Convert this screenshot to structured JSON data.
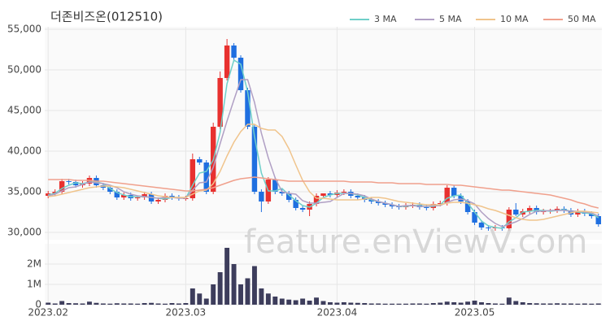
{
  "chart_data": {
    "type": "candlestick",
    "title": "더존비즈온(012510)",
    "watermark": "feature.enViewV.com",
    "categories": [
      "2023.02",
      null,
      null,
      null,
      null,
      null,
      null,
      null,
      null,
      null,
      null,
      null,
      null,
      null,
      null,
      null,
      null,
      null,
      null,
      null,
      "2023.03",
      null,
      null,
      null,
      null,
      null,
      null,
      null,
      null,
      null,
      null,
      null,
      null,
      null,
      null,
      null,
      null,
      null,
      null,
      null,
      null,
      null,
      "2023.04",
      null,
      null,
      null,
      null,
      null,
      null,
      null,
      null,
      null,
      null,
      null,
      null,
      null,
      null,
      null,
      null,
      null,
      null,
      null,
      "2023.05",
      null,
      null,
      null,
      null,
      null,
      null,
      null,
      null,
      null,
      null,
      null,
      null,
      null,
      null,
      null,
      null,
      null,
      null
    ],
    "open": [
      34500,
      34800,
      35000,
      36300,
      36200,
      35800,
      36000,
      36700,
      35800,
      35500,
      35000,
      34300,
      34600,
      34200,
      34300,
      34700,
      33800,
      34000,
      34500,
      34300,
      34200,
      34200,
      39000,
      38600,
      35000,
      43000,
      49000,
      53000,
      51500,
      47500,
      43000,
      35000,
      33800,
      36500,
      35000,
      34800,
      34000,
      33000,
      32800,
      33500,
      34500,
      34800,
      34600,
      34900,
      35000,
      34500,
      34300,
      34000,
      33800,
      33600,
      33400,
      33200,
      33100,
      33300,
      33400,
      33100,
      33000,
      33500,
      33600,
      35500,
      34500,
      33800,
      32500,
      31200,
      30600,
      30500,
      30600,
      30500,
      32800,
      32200,
      32600,
      33000,
      32500,
      32600,
      32700,
      32900,
      32700,
      32200,
      32600,
      32300,
      32000
    ],
    "high": [
      35100,
      35300,
      36600,
      36600,
      36500,
      36300,
      37000,
      37000,
      36100,
      35800,
      35300,
      34900,
      34900,
      34500,
      35000,
      35000,
      34300,
      34800,
      34800,
      34600,
      34500,
      39700,
      39300,
      38900,
      43500,
      49800,
      53800,
      53300,
      51800,
      47800,
      43300,
      35300,
      36800,
      36800,
      35300,
      35100,
      34300,
      33300,
      33800,
      34800,
      34800,
      35100,
      35200,
      35300,
      35300,
      34800,
      34600,
      34300,
      34100,
      33900,
      33700,
      33500,
      33600,
      33700,
      33700,
      33400,
      33800,
      33900,
      35800,
      35800,
      34800,
      34100,
      32800,
      31500,
      30900,
      30900,
      30900,
      33100,
      33600,
      32900,
      33300,
      33300,
      32900,
      32900,
      33200,
      33200,
      33000,
      32900,
      32900,
      32600,
      32300
    ],
    "low": [
      34200,
      34500,
      34700,
      35900,
      35500,
      35500,
      35700,
      35500,
      35200,
      34700,
      34000,
      34000,
      33900,
      33900,
      34000,
      33500,
      33500,
      33700,
      34000,
      33900,
      33900,
      33900,
      38300,
      34700,
      34700,
      42700,
      48700,
      51200,
      47200,
      42700,
      34700,
      32500,
      33500,
      34700,
      34500,
      33700,
      32700,
      32500,
      32000,
      33200,
      34200,
      34300,
      34300,
      34600,
      34200,
      34000,
      33700,
      33500,
      33300,
      33100,
      32900,
      32800,
      32800,
      33000,
      32800,
      32700,
      32700,
      33200,
      33300,
      34200,
      33500,
      32200,
      30900,
      30300,
      30200,
      30200,
      30200,
      30200,
      32000,
      31900,
      32300,
      32200,
      32200,
      32300,
      32400,
      32400,
      31900,
      31900,
      32000,
      31700,
      30700
    ],
    "close": [
      34800,
      35000,
      36300,
      36200,
      35800,
      36000,
      36700,
      35800,
      35500,
      35000,
      34300,
      34600,
      34200,
      34300,
      34700,
      33800,
      34000,
      34500,
      34300,
      34200,
      34200,
      39000,
      38600,
      35000,
      43000,
      49000,
      53000,
      51500,
      47500,
      43000,
      35000,
      33800,
      36500,
      35000,
      34800,
      34000,
      33000,
      32800,
      33500,
      34500,
      34800,
      34600,
      34900,
      35000,
      34500,
      34300,
      34000,
      33800,
      33600,
      33400,
      33200,
      33100,
      33300,
      33400,
      33100,
      33000,
      33500,
      33600,
      35500,
      34500,
      33800,
      32500,
      31200,
      30600,
      30500,
      30600,
      30500,
      32800,
      32200,
      32600,
      33000,
      32500,
      32600,
      32700,
      32900,
      32700,
      32200,
      32600,
      32300,
      32000,
      31000
    ],
    "up_color": "#e8312f",
    "down_color": "#1f6fe0",
    "ylim": [
      29100,
      55300
    ],
    "yticks": [
      {
        "value": 30000,
        "label": "30,000"
      },
      {
        "value": 35000,
        "label": "35,000"
      },
      {
        "value": 40000,
        "label": "40,000"
      },
      {
        "value": 45000,
        "label": "45,000"
      },
      {
        "value": 50000,
        "label": "50,000"
      },
      {
        "value": 55000,
        "label": "55,000"
      }
    ],
    "grid": true,
    "series": [
      {
        "name": "3 MA",
        "color": "#6fcfc9",
        "values": [
          34600,
          34800,
          35400,
          35800,
          36100,
          36000,
          36200,
          36200,
          36000,
          35400,
          34900,
          34600,
          34400,
          34400,
          34400,
          34300,
          34200,
          34100,
          34300,
          34300,
          34200,
          35800,
          37300,
          37500,
          38900,
          42300,
          48300,
          51200,
          50700,
          47300,
          41800,
          37300,
          35100,
          35100,
          35400,
          34600,
          33900,
          33300,
          33100,
          33600,
          34300,
          34600,
          34800,
          34800,
          34800,
          34600,
          34300,
          34000,
          33800,
          33600,
          33400,
          33200,
          33200,
          33300,
          33300,
          33200,
          33200,
          33400,
          34200,
          34500,
          34600,
          33600,
          32500,
          31400,
          30800,
          30600,
          30500,
          31300,
          31800,
          32500,
          32600,
          32700,
          32700,
          32600,
          32700,
          32800,
          32600,
          32500,
          32400,
          32300,
          31800
        ]
      },
      {
        "name": "5 MA",
        "color": "#b09fc4",
        "values": [
          34500,
          34700,
          35100,
          35500,
          35600,
          35900,
          36200,
          36100,
          36000,
          35800,
          35500,
          35000,
          34700,
          34500,
          34400,
          34300,
          34200,
          34300,
          34300,
          34200,
          34200,
          35200,
          36100,
          36200,
          38000,
          40900,
          43700,
          46300,
          48800,
          48800,
          46000,
          42200,
          39200,
          36700,
          35000,
          34800,
          34700,
          33900,
          33600,
          33600,
          33700,
          33800,
          34300,
          34800,
          34800,
          34700,
          34500,
          34100,
          33800,
          33600,
          33400,
          33200,
          33300,
          33300,
          33200,
          33200,
          33300,
          33300,
          33700,
          34000,
          34100,
          33900,
          33500,
          32500,
          31700,
          31100,
          30700,
          31000,
          31300,
          31700,
          32200,
          32600,
          32600,
          32700,
          32700,
          32700,
          32600,
          32600,
          32500,
          32400,
          32000
        ]
      },
      {
        "name": "10 MA",
        "color": "#f0c48c",
        "values": [
          34400,
          34500,
          34700,
          34900,
          35100,
          35300,
          35500,
          35600,
          35700,
          35700,
          35600,
          35500,
          35300,
          35100,
          34900,
          34700,
          34500,
          34400,
          34300,
          34300,
          34300,
          34700,
          35100,
          35200,
          36000,
          37500,
          39400,
          41100,
          42400,
          43300,
          43300,
          42800,
          42600,
          42600,
          41800,
          40300,
          38300,
          36400,
          35000,
          34200,
          34200,
          34100,
          34000,
          34000,
          34000,
          34000,
          34100,
          34300,
          34300,
          34200,
          34000,
          33800,
          33700,
          33600,
          33500,
          33400,
          33400,
          33400,
          33600,
          33700,
          33700,
          33600,
          33400,
          33200,
          32900,
          32700,
          32400,
          32100,
          31800,
          31600,
          31500,
          31500,
          31600,
          31800,
          32000,
          32200,
          32400,
          32600,
          32600,
          32500,
          32400
        ]
      },
      {
        "name": "50 MA",
        "color": "#f0a08c",
        "values": [
          36500,
          36500,
          36500,
          36500,
          36400,
          36400,
          36400,
          36300,
          36300,
          36200,
          36100,
          36000,
          35900,
          35800,
          35700,
          35600,
          35500,
          35400,
          35300,
          35200,
          35100,
          35100,
          35200,
          35300,
          35500,
          35800,
          36100,
          36400,
          36600,
          36700,
          36800,
          36700,
          36600,
          36500,
          36400,
          36300,
          36300,
          36300,
          36300,
          36300,
          36300,
          36300,
          36300,
          36300,
          36200,
          36200,
          36200,
          36200,
          36100,
          36100,
          36100,
          36000,
          36000,
          36000,
          36000,
          35900,
          35900,
          35900,
          35900,
          35800,
          35800,
          35700,
          35600,
          35500,
          35400,
          35300,
          35200,
          35200,
          35100,
          35000,
          34900,
          34800,
          34700,
          34600,
          34400,
          34200,
          34000,
          33700,
          33500,
          33200,
          33000
        ]
      }
    ],
    "volume": {
      "color": "#3d3d5c",
      "ylim": [
        0,
        3000000
      ],
      "yticks": [
        0,
        {
          "value": 1000000,
          "label": "1M"
        },
        {
          "value": 2000000,
          "label": "2M"
        }
      ],
      "values": [
        100000,
        60000,
        180000,
        80000,
        70000,
        60000,
        150000,
        90000,
        60000,
        50000,
        70000,
        60000,
        60000,
        50000,
        80000,
        90000,
        60000,
        50000,
        80000,
        60000,
        80000,
        800000,
        550000,
        300000,
        1000000,
        1600000,
        2800000,
        2000000,
        1000000,
        1300000,
        1900000,
        800000,
        550000,
        400000,
        300000,
        250000,
        220000,
        300000,
        200000,
        350000,
        180000,
        120000,
        100000,
        120000,
        100000,
        90000,
        80000,
        60000,
        60000,
        50000,
        50000,
        50000,
        50000,
        60000,
        60000,
        50000,
        80000,
        100000,
        150000,
        120000,
        100000,
        150000,
        200000,
        120000,
        80000,
        60000,
        50000,
        350000,
        180000,
        120000,
        80000,
        70000,
        60000,
        60000,
        70000,
        60000,
        60000,
        50000,
        60000,
        50000,
        60000
      ]
    }
  }
}
